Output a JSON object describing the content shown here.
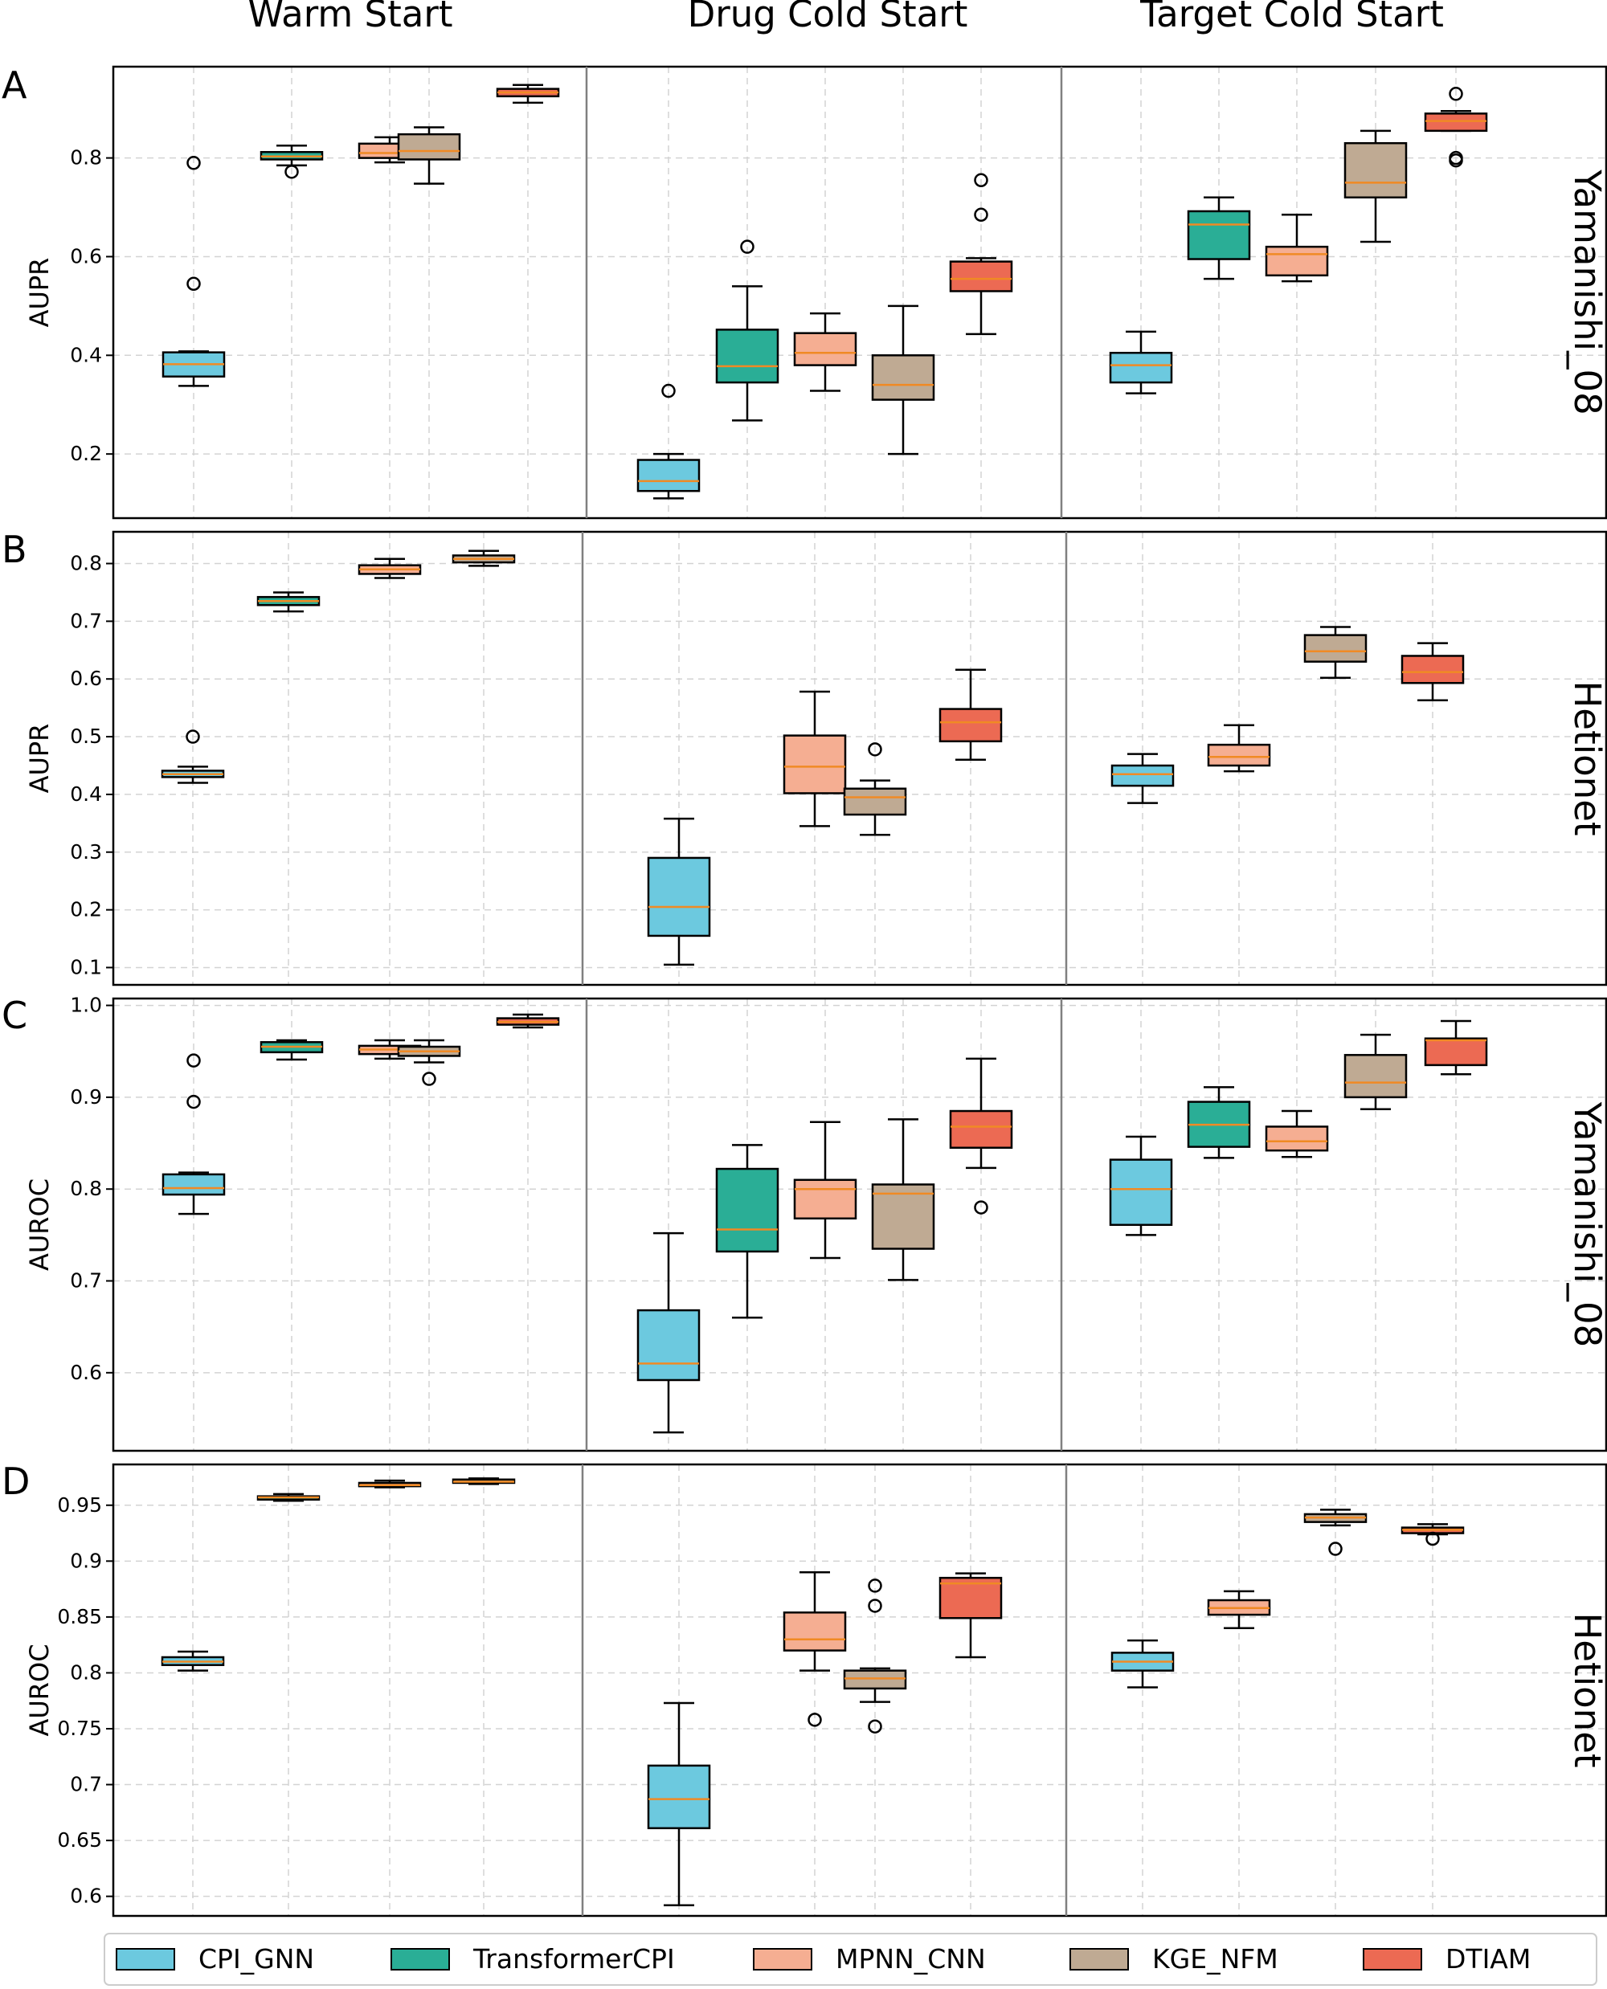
{
  "column_titles": [
    "Warm Start",
    "Drug Cold Start",
    "Target Cold Start"
  ],
  "legend": [
    {
      "label": "CPI_GNN",
      "color": "#6CC9DF"
    },
    {
      "label": "TransformerCPI",
      "color": "#2AAE96"
    },
    {
      "label": "MPNN_CNN",
      "color": "#F5AE92"
    },
    {
      "label": "KGE_NFM",
      "color": "#BFAA93"
    },
    {
      "label": "DTIAM",
      "color": "#EC6A53"
    }
  ],
  "colors": {
    "median": "#F08A24",
    "grid": "#D3D3D3",
    "divider": "#808080"
  },
  "chart_data": [
    {
      "type": "box",
      "panel": "A",
      "ylabel": "AUPR",
      "dataset": "Yamanishi_08",
      "ylim": [
        0.07,
        0.985
      ],
      "yticks": [
        0.2,
        0.4,
        0.6,
        0.8
      ],
      "groups": [
        {
          "name": "Warm Start",
          "boxes": [
            {
              "method": "CPI_GNN",
              "whislo": 0.338,
              "q1": 0.357,
              "med": 0.382,
              "q3": 0.406,
              "whishi": 0.408,
              "fliers": [
                0.79,
                0.545
              ]
            },
            {
              "method": "TransformerCPI",
              "whislo": 0.785,
              "q1": 0.797,
              "med": 0.803,
              "q3": 0.812,
              "whishi": 0.825,
              "fliers": [
                0.772
              ]
            },
            {
              "method": "MPNN_CNN",
              "whislo": 0.791,
              "q1": 0.8,
              "med": 0.81,
              "q3": 0.829,
              "whishi": 0.842,
              "fliers": []
            },
            {
              "method": "KGE_NFM",
              "whislo": 0.748,
              "q1": 0.797,
              "med": 0.814,
              "q3": 0.848,
              "whishi": 0.862,
              "fliers": []
            },
            {
              "method": "DTIAM",
              "whislo": 0.912,
              "q1": 0.925,
              "med": 0.933,
              "q3": 0.94,
              "whishi": 0.948,
              "fliers": []
            }
          ]
        },
        {
          "name": "Drug Cold Start",
          "boxes": [
            {
              "method": "CPI_GNN",
              "whislo": 0.11,
              "q1": 0.125,
              "med": 0.145,
              "q3": 0.188,
              "whishi": 0.2,
              "fliers": [
                0.328
              ]
            },
            {
              "method": "TransformerCPI",
              "whislo": 0.268,
              "q1": 0.345,
              "med": 0.378,
              "q3": 0.452,
              "whishi": 0.54,
              "fliers": [
                0.62
              ]
            },
            {
              "method": "MPNN_CNN",
              "whislo": 0.328,
              "q1": 0.38,
              "med": 0.405,
              "q3": 0.445,
              "whishi": 0.485,
              "fliers": []
            },
            {
              "method": "KGE_NFM",
              "whislo": 0.2,
              "q1": 0.31,
              "med": 0.34,
              "q3": 0.4,
              "whishi": 0.5,
              "fliers": []
            },
            {
              "method": "DTIAM",
              "whislo": 0.443,
              "q1": 0.53,
              "med": 0.555,
              "q3": 0.59,
              "whishi": 0.597,
              "fliers": [
                0.755,
                0.685
              ]
            }
          ]
        },
        {
          "name": "Target Cold Start",
          "boxes": [
            {
              "method": "CPI_GNN",
              "whislo": 0.323,
              "q1": 0.345,
              "med": 0.38,
              "q3": 0.405,
              "whishi": 0.448,
              "fliers": []
            },
            {
              "method": "TransformerCPI",
              "whislo": 0.555,
              "q1": 0.595,
              "med": 0.665,
              "q3": 0.692,
              "whishi": 0.72,
              "fliers": []
            },
            {
              "method": "MPNN_CNN",
              "whislo": 0.55,
              "q1": 0.562,
              "med": 0.605,
              "q3": 0.62,
              "whishi": 0.685,
              "fliers": []
            },
            {
              "method": "KGE_NFM",
              "whislo": 0.63,
              "q1": 0.72,
              "med": 0.75,
              "q3": 0.83,
              "whishi": 0.855,
              "fliers": []
            },
            {
              "method": "DTIAM",
              "whislo": 0.855,
              "q1": 0.855,
              "med": 0.875,
              "q3": 0.89,
              "whishi": 0.895,
              "fliers": [
                0.93,
                0.8,
                0.795
              ]
            }
          ]
        }
      ]
    },
    {
      "type": "box",
      "panel": "B",
      "ylabel": "AUPR",
      "dataset": "Hetionet",
      "ylim": [
        0.07,
        0.855
      ],
      "yticks": [
        0.1,
        0.2,
        0.3,
        0.4,
        0.5,
        0.6,
        0.7,
        0.8
      ],
      "groups": [
        {
          "name": "Warm Start",
          "boxes": [
            {
              "method": "CPI_GNN",
              "whislo": 0.42,
              "q1": 0.43,
              "med": 0.435,
              "q3": 0.441,
              "whishi": 0.448,
              "fliers": [
                0.5
              ]
            },
            {
              "method": "TransformerCPI",
              "whislo": 0.717,
              "q1": 0.728,
              "med": 0.735,
              "q3": 0.742,
              "whishi": 0.75,
              "fliers": []
            },
            {
              "method": "MPNN_CNN",
              "whislo": 0.775,
              "q1": 0.782,
              "med": 0.79,
              "q3": 0.797,
              "whishi": 0.808,
              "fliers": []
            },
            {
              "method": "KGE_NFM",
              "whislo": 0.796,
              "q1": 0.802,
              "med": 0.808,
              "q3": 0.814,
              "whishi": 0.822,
              "fliers": []
            },
            null
          ]
        },
        {
          "name": "Drug Cold Start",
          "boxes": [
            {
              "method": "CPI_GNN",
              "whislo": 0.105,
              "q1": 0.155,
              "med": 0.205,
              "q3": 0.29,
              "whishi": 0.358,
              "fliers": []
            },
            null,
            {
              "method": "MPNN_CNN",
              "whislo": 0.345,
              "q1": 0.402,
              "med": 0.448,
              "q3": 0.502,
              "whishi": 0.578,
              "fliers": []
            },
            {
              "method": "KGE_NFM",
              "whislo": 0.33,
              "q1": 0.365,
              "med": 0.395,
              "q3": 0.41,
              "whishi": 0.424,
              "fliers": [
                0.478
              ]
            },
            {
              "method": "DTIAM",
              "whislo": 0.46,
              "q1": 0.492,
              "med": 0.525,
              "q3": 0.548,
              "whishi": 0.616,
              "fliers": []
            }
          ]
        },
        {
          "name": "Target Cold Start",
          "boxes": [
            {
              "method": "CPI_GNN",
              "whislo": 0.385,
              "q1": 0.415,
              "med": 0.435,
              "q3": 0.45,
              "whishi": 0.47,
              "fliers": []
            },
            {
              "method": "MPNN_CNN",
              "whislo": 0.44,
              "q1": 0.45,
              "med": 0.465,
              "q3": 0.486,
              "whishi": 0.52,
              "fliers": []
            },
            null,
            {
              "method": "KGE_NFM",
              "whislo": 0.602,
              "q1": 0.63,
              "med": 0.648,
              "q3": 0.676,
              "whishi": 0.69,
              "fliers": []
            },
            {
              "method": "DTIAM",
              "whislo": 0.563,
              "q1": 0.593,
              "med": 0.612,
              "q3": 0.64,
              "whishi": 0.662,
              "fliers": []
            }
          ]
        }
      ]
    },
    {
      "type": "box",
      "panel": "C",
      "ylabel": "AUROC",
      "dataset": "Yamanishi_08",
      "ylim": [
        0.515,
        1.0075
      ],
      "yticks": [
        0.6,
        0.7,
        0.8,
        0.9,
        1.0
      ],
      "groups": [
        {
          "name": "Warm Start",
          "boxes": [
            {
              "method": "CPI_GNN",
              "whislo": 0.773,
              "q1": 0.794,
              "med": 0.801,
              "q3": 0.816,
              "whishi": 0.818,
              "fliers": [
                0.94,
                0.895
              ]
            },
            {
              "method": "TransformerCPI",
              "whislo": 0.941,
              "q1": 0.949,
              "med": 0.955,
              "q3": 0.96,
              "whishi": 0.962,
              "fliers": []
            },
            {
              "method": "MPNN_CNN",
              "whislo": 0.942,
              "q1": 0.947,
              "med": 0.952,
              "q3": 0.956,
              "whishi": 0.962,
              "fliers": []
            },
            {
              "method": "KGE_NFM",
              "whislo": 0.938,
              "q1": 0.945,
              "med": 0.95,
              "q3": 0.955,
              "whishi": 0.962,
              "fliers": [
                0.92
              ]
            },
            {
              "method": "DTIAM",
              "whislo": 0.976,
              "q1": 0.979,
              "med": 0.982,
              "q3": 0.986,
              "whishi": 0.99,
              "fliers": []
            }
          ]
        },
        {
          "name": "Drug Cold Start",
          "boxes": [
            {
              "method": "CPI_GNN",
              "whislo": 0.535,
              "q1": 0.592,
              "med": 0.61,
              "q3": 0.668,
              "whishi": 0.752,
              "fliers": []
            },
            {
              "method": "TransformerCPI",
              "whislo": 0.66,
              "q1": 0.732,
              "med": 0.756,
              "q3": 0.822,
              "whishi": 0.848,
              "fliers": []
            },
            {
              "method": "MPNN_CNN",
              "whislo": 0.725,
              "q1": 0.768,
              "med": 0.8,
              "q3": 0.81,
              "whishi": 0.873,
              "fliers": []
            },
            {
              "method": "KGE_NFM",
              "whislo": 0.701,
              "q1": 0.735,
              "med": 0.795,
              "q3": 0.805,
              "whishi": 0.876,
              "fliers": []
            },
            {
              "method": "DTIAM",
              "whislo": 0.823,
              "q1": 0.845,
              "med": 0.868,
              "q3": 0.885,
              "whishi": 0.942,
              "fliers": [
                0.78
              ]
            }
          ]
        },
        {
          "name": "Target Cold Start",
          "boxes": [
            {
              "method": "CPI_GNN",
              "whislo": 0.75,
              "q1": 0.761,
              "med": 0.8,
              "q3": 0.832,
              "whishi": 0.857,
              "fliers": []
            },
            {
              "method": "TransformerCPI",
              "whislo": 0.834,
              "q1": 0.846,
              "med": 0.87,
              "q3": 0.895,
              "whishi": 0.911,
              "fliers": []
            },
            {
              "method": "MPNN_CNN",
              "whislo": 0.835,
              "q1": 0.842,
              "med": 0.852,
              "q3": 0.868,
              "whishi": 0.885,
              "fliers": []
            },
            {
              "method": "KGE_NFM",
              "whislo": 0.887,
              "q1": 0.9,
              "med": 0.916,
              "q3": 0.946,
              "whishi": 0.968,
              "fliers": []
            },
            {
              "method": "DTIAM",
              "whislo": 0.925,
              "q1": 0.935,
              "med": 0.962,
              "q3": 0.964,
              "whishi": 0.983,
              "fliers": []
            }
          ]
        }
      ]
    },
    {
      "type": "box",
      "panel": "D",
      "ylabel": "AUROC",
      "dataset": "Hetionet",
      "ylim": [
        0.5825,
        0.9865
      ],
      "yticks": [
        0.6,
        0.65,
        0.7,
        0.75,
        0.8,
        0.85,
        0.9,
        0.95
      ],
      "groups": [
        {
          "name": "Warm Start",
          "boxes": [
            {
              "method": "CPI_GNN",
              "whislo": 0.802,
              "q1": 0.807,
              "med": 0.81,
              "q3": 0.814,
              "whishi": 0.819,
              "fliers": []
            },
            {
              "method": "TransformerCPI",
              "whislo": 0.954,
              "q1": 0.955,
              "med": 0.957,
              "q3": 0.958,
              "whishi": 0.96,
              "fliers": []
            },
            {
              "method": "MPNN_CNN",
              "whislo": 0.966,
              "q1": 0.967,
              "med": 0.968,
              "q3": 0.97,
              "whishi": 0.972,
              "fliers": []
            },
            {
              "method": "KGE_NFM",
              "whislo": 0.969,
              "q1": 0.97,
              "med": 0.971,
              "q3": 0.973,
              "whishi": 0.974,
              "fliers": []
            },
            null
          ]
        },
        {
          "name": "Drug Cold Start",
          "boxes": [
            {
              "method": "CPI_GNN",
              "whislo": 0.592,
              "q1": 0.661,
              "med": 0.687,
              "q3": 0.717,
              "whishi": 0.773,
              "fliers": []
            },
            null,
            {
              "method": "MPNN_CNN",
              "whislo": 0.802,
              "q1": 0.82,
              "med": 0.83,
              "q3": 0.854,
              "whishi": 0.89,
              "fliers": [
                0.758
              ]
            },
            {
              "method": "KGE_NFM",
              "whislo": 0.774,
              "q1": 0.786,
              "med": 0.795,
              "q3": 0.802,
              "whishi": 0.804,
              "fliers": [
                0.878,
                0.86,
                0.752
              ]
            },
            {
              "method": "DTIAM",
              "whislo": 0.814,
              "q1": 0.849,
              "med": 0.88,
              "q3": 0.885,
              "whishi": 0.889,
              "fliers": []
            }
          ]
        },
        {
          "name": "Target Cold Start",
          "boxes": [
            {
              "method": "CPI_GNN",
              "whislo": 0.787,
              "q1": 0.802,
              "med": 0.81,
              "q3": 0.818,
              "whishi": 0.829,
              "fliers": []
            },
            {
              "method": "MPNN_CNN",
              "whislo": 0.84,
              "q1": 0.852,
              "med": 0.858,
              "q3": 0.865,
              "whishi": 0.873,
              "fliers": []
            },
            null,
            {
              "method": "KGE_NFM",
              "whislo": 0.932,
              "q1": 0.935,
              "med": 0.939,
              "q3": 0.942,
              "whishi": 0.946,
              "fliers": [
                0.911
              ]
            },
            {
              "method": "DTIAM",
              "whislo": 0.924,
              "q1": 0.925,
              "med": 0.928,
              "q3": 0.93,
              "whishi": 0.933,
              "fliers": [
                0.92
              ]
            }
          ]
        }
      ]
    }
  ]
}
